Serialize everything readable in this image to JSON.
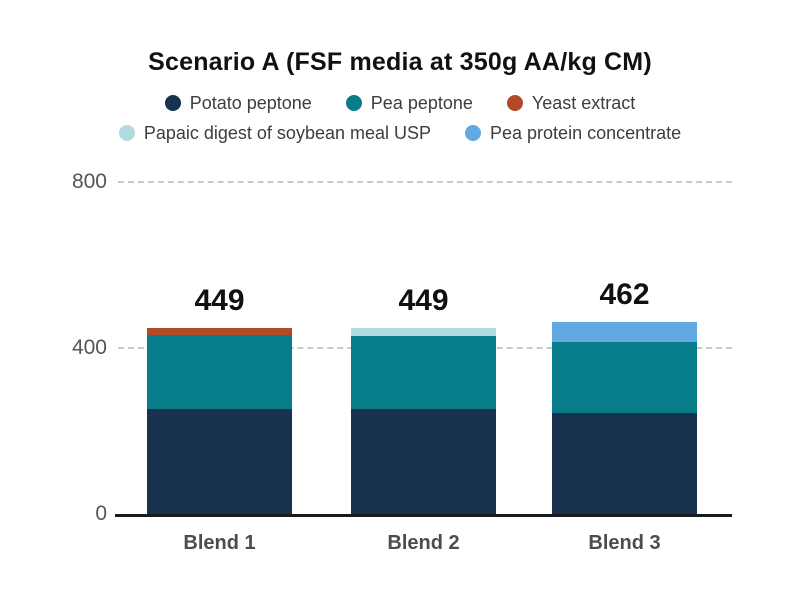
{
  "title": "Scenario A (FSF media at 350g AA/kg CM)",
  "colors": {
    "potato_peptone": "#17314f",
    "pea_peptone": "#087d8a",
    "yeast_extract": "#b14a26",
    "papaic_digest": "#b0dce1",
    "pea_protein": "#61a9e0",
    "grid_line": "#c9c9c9",
    "axis_line": "#1a1a1a",
    "tick_label": "#555555",
    "category_label": "#4d4d4d",
    "legend_label": "#3d3d3d",
    "value_label": "#111111",
    "background": "#ffffff"
  },
  "legend": {
    "rows": [
      [
        {
          "label": "Potato peptone",
          "color": "#17314f"
        },
        {
          "label": "Pea peptone",
          "color": "#087d8a"
        },
        {
          "label": "Yeast extract",
          "color": "#b14a26"
        }
      ],
      [
        {
          "label": "Papaic digest of soybean meal USP",
          "color": "#b0dce1"
        },
        {
          "label": "Pea protein concentrate",
          "color": "#61a9e0"
        }
      ]
    ]
  },
  "y_axis": {
    "ticks": [
      {
        "label": "800",
        "value": 800
      },
      {
        "label": "400",
        "value": 400
      },
      {
        "label": "0",
        "value": 0
      }
    ]
  },
  "chart_data": {
    "type": "bar",
    "stacked": true,
    "title": "Scenario A (FSF media at 350g AA/kg CM)",
    "categories": [
      "Blend 1",
      "Blend 2",
      "Blend 3"
    ],
    "series": [
      {
        "name": "Potato peptone",
        "color": "#17314f",
        "values": [
          252,
          252,
          244
        ]
      },
      {
        "name": "Pea peptone",
        "color": "#087d8a",
        "values": [
          179,
          177,
          170
        ]
      },
      {
        "name": "Yeast extract",
        "color": "#b14a26",
        "values": [
          18,
          0,
          0
        ]
      },
      {
        "name": "Papaic digest of soybean meal USP",
        "color": "#b0dce1",
        "values": [
          0,
          20,
          0
        ]
      },
      {
        "name": "Pea protein concentrate",
        "color": "#61a9e0",
        "values": [
          0,
          0,
          48
        ]
      }
    ],
    "totals": [
      449,
      449,
      462
    ],
    "bar_total_labels": [
      "449",
      "449",
      "462"
    ],
    "xlabel": "",
    "ylabel": "",
    "ylim": [
      0,
      800
    ],
    "gridlines_at": [
      400,
      800
    ],
    "grid": "dashed-horizontal",
    "legend_position": "top"
  }
}
